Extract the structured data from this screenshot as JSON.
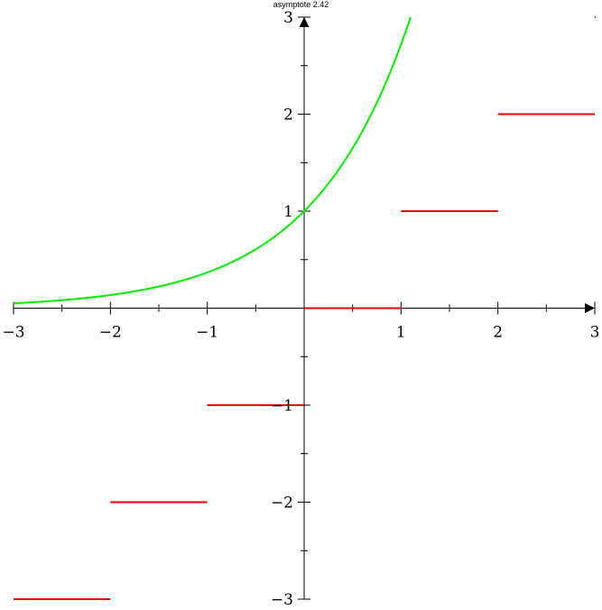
{
  "header": {
    "label": "asymptote  2.42"
  },
  "chart_data": {
    "type": "line",
    "xlim": [
      -3,
      3
    ],
    "ylim": [
      -3,
      3
    ],
    "grid": false,
    "xticks": {
      "major": [
        -3,
        -2,
        -1,
        1,
        2,
        3
      ],
      "labels": [
        "−3",
        "−2",
        "−1",
        "1",
        "2",
        "3"
      ],
      "minor": [
        -2.5,
        -1.5,
        -0.5,
        0.5,
        1.5,
        2.5
      ]
    },
    "yticks": {
      "major": [
        -3,
        -2,
        -1,
        1,
        2,
        3
      ],
      "labels": [
        "−3",
        "−2",
        "−1",
        "1",
        "2",
        "3"
      ],
      "minor": [
        -2.5,
        -1.5,
        -0.5,
        0.5,
        1.5,
        2.5
      ]
    },
    "series": [
      {
        "id": "exp-curve",
        "function": "exp(x)",
        "color": "#00ee00",
        "x": [
          -3,
          -2.75,
          -2.5,
          -2.25,
          -2,
          -1.75,
          -1.5,
          -1.25,
          -1,
          -0.75,
          -0.5,
          -0.25,
          0,
          0.25,
          0.5,
          0.75,
          1,
          1.0986
        ],
        "y": [
          0.0498,
          0.0639,
          0.0821,
          0.1054,
          0.1353,
          0.1738,
          0.2231,
          0.2865,
          0.3679,
          0.4724,
          0.6065,
          0.7788,
          1,
          1.284,
          1.6487,
          2.117,
          2.7183,
          3
        ]
      },
      {
        "id": "floor-steps",
        "function": "floor(x)",
        "color": "#ee0000",
        "segments": [
          {
            "x": [
              -3,
              -2
            ],
            "y": -3
          },
          {
            "x": [
              -2,
              -1
            ],
            "y": -2
          },
          {
            "x": [
              -1,
              0
            ],
            "y": -1
          },
          {
            "x": [
              0,
              1
            ],
            "y": 0
          },
          {
            "x": [
              1,
              2
            ],
            "y": 1
          },
          {
            "x": [
              2,
              3
            ],
            "y": 2
          },
          {
            "x": [
              3,
              3
            ],
            "y": 3
          }
        ]
      }
    ]
  }
}
